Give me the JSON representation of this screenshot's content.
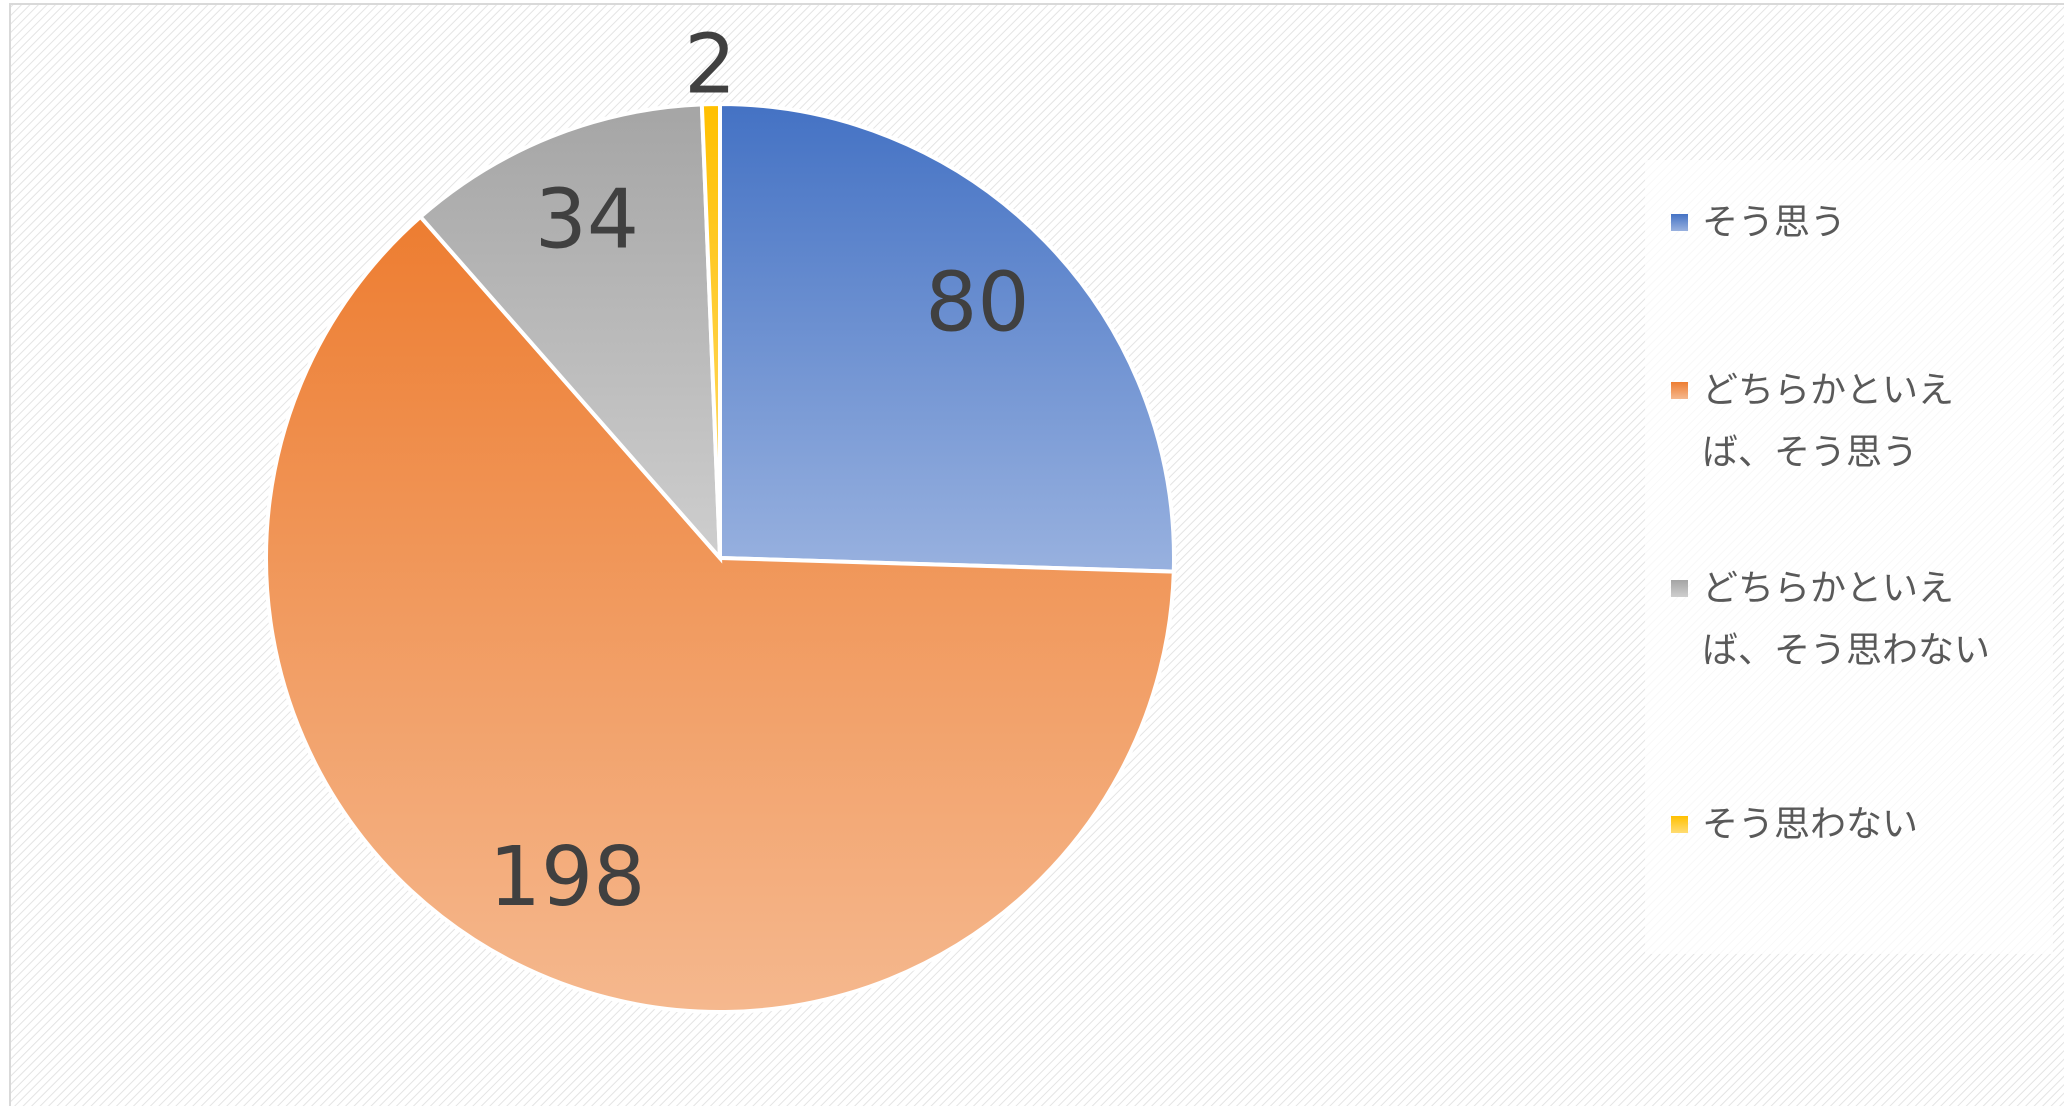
{
  "chart_data": {
    "type": "pie",
    "categories": [
      "そう思う",
      "どちらかといえば、そう思う",
      "どちらかといえば、そう思わない",
      "そう思わない"
    ],
    "values": [
      80,
      198,
      34,
      2
    ],
    "colors": [
      "#4472c4",
      "#ed7d31",
      "#a5a5a5",
      "#ffc000"
    ],
    "legend": "right"
  }
}
